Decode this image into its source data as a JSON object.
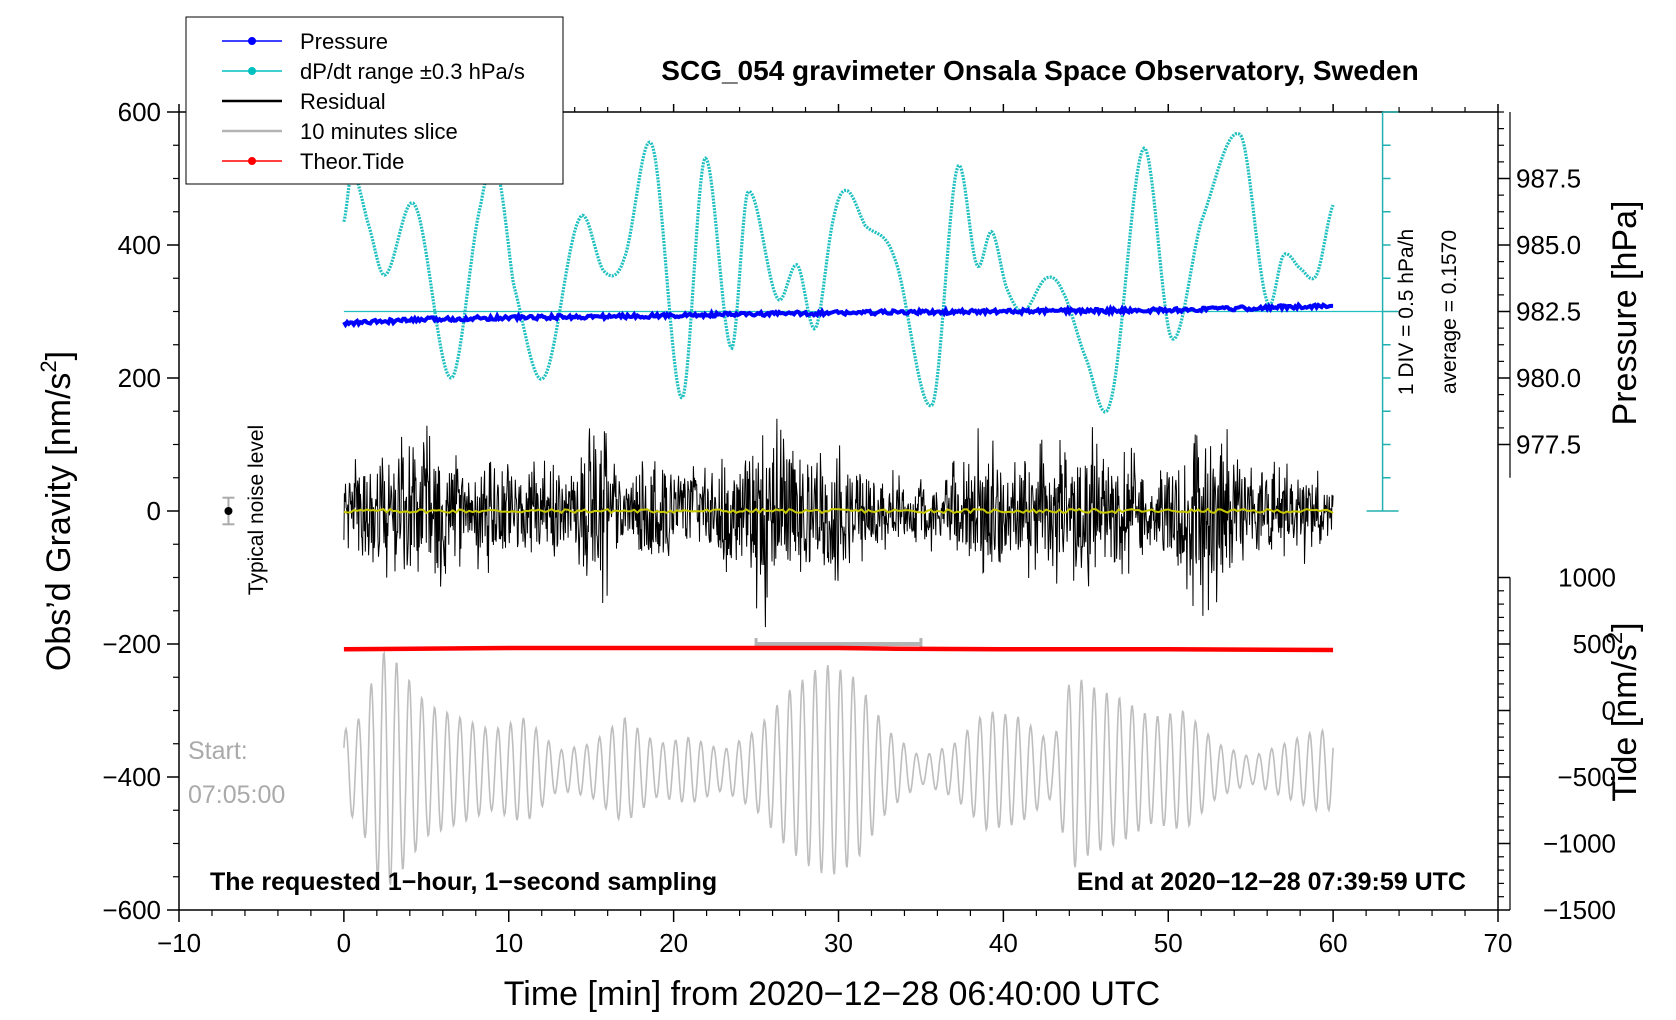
{
  "chart_data": {
    "type": "line",
    "title": "SCG_054 gravimeter Onsala Space Observatory, Sweden",
    "xlabel": "Time [min] from 2020−12−28 06:40:00 UTC",
    "ylabel": "Obs’d Gravity [nm/s",
    "ylabel_sup": "2",
    "ylabel_close": "]",
    "xlim": [
      -10,
      70
    ],
    "ylim": [
      -600,
      600
    ],
    "x_ticks": [
      -10,
      0,
      10,
      20,
      30,
      40,
      50,
      60,
      70
    ],
    "x_tick_labels": [
      "−10",
      "0",
      "10",
      "20",
      "30",
      "40",
      "50",
      "60",
      "70"
    ],
    "y_ticks": [
      -600,
      -400,
      -200,
      0,
      200,
      400,
      600
    ],
    "y_tick_labels": [
      "−600",
      "−400",
      "−200",
      "0",
      "200",
      "400",
      "600"
    ],
    "pressure_axis": {
      "label": "Pressure [hPa]",
      "ticks": [
        977.5,
        980.0,
        982.5,
        985.0,
        987.5
      ],
      "tick_labels": [
        "977.5",
        "980.0",
        "982.5",
        "985.0",
        "987.5"
      ],
      "gravity_equiv": [
        100,
        200,
        300,
        400,
        500
      ]
    },
    "tide_axis": {
      "label": "Tide [nm/s",
      "label_sup": "2",
      "label_close": "]",
      "ticks": [
        -1500,
        -1000,
        -500,
        0,
        500,
        1000
      ],
      "tick_labels": [
        "−1500",
        "−1000",
        "−500",
        "0",
        "500",
        "1000"
      ],
      "gravity_equiv": [
        -600,
        -500,
        -400,
        -300,
        -200,
        -100
      ]
    },
    "dpdt_axis": {
      "div_label": "1 DIV = 0.5 hPa/h",
      "average_label": "average = 0.1570",
      "range_gravity": [
        0,
        600
      ],
      "x": 63
    },
    "legend": [
      {
        "label": "Pressure",
        "color": "#0000ff",
        "style": "line-dot"
      },
      {
        "label": "dP/dt range ±0.3 hPa/s",
        "color": "#00c0c0",
        "style": "line-dot"
      },
      {
        "label": "Residual",
        "color": "#000000",
        "style": "line"
      },
      {
        "label": "10 minutes slice",
        "color": "#b4b4b4",
        "style": "line"
      },
      {
        "label": "Theor.Tide",
        "color": "#ff0000",
        "style": "line-dot"
      }
    ],
    "legend_position": "top-left",
    "series": [
      {
        "name": "dP/dt",
        "color": "#20c0c0",
        "x": [
          0,
          0.5,
          1.5,
          2.5,
          4.3,
          6.5,
          8.3,
          9.3,
          10.3,
          12.1,
          14.3,
          15.8,
          17,
          18.7,
          20.5,
          21.9,
          23.5,
          24.5,
          26.3,
          27.5,
          28.6,
          29.7,
          30.5,
          31.6,
          33.4,
          35.7,
          37.2,
          38.4,
          39.3,
          40.2,
          41.2,
          42.6,
          43.6,
          45,
          46.5,
          48.5,
          50.2,
          52,
          54.4,
          56,
          57,
          58,
          59,
          60
        ],
        "y": [
          435,
          510,
          430,
          355,
          460,
          200,
          460,
          510,
          340,
          200,
          440,
          360,
          380,
          550,
          170,
          530,
          245,
          480,
          320,
          370,
          275,
          440,
          482,
          430,
          380,
          160,
          515,
          370,
          420,
          335,
          300,
          350,
          330,
          230,
          165,
          545,
          260,
          435,
          565,
          315,
          385,
          365,
          355,
          460
        ]
      },
      {
        "name": "Pressure",
        "color": "#0000ff",
        "x": [
          0,
          5,
          10,
          15,
          20,
          25,
          30,
          35,
          40,
          45,
          50,
          55,
          60
        ],
        "y": [
          282,
          288,
          291,
          292,
          294,
          296,
          298,
          299,
          300,
          301,
          302,
          305,
          309
        ]
      },
      {
        "name": "Residual",
        "color": "#000000",
        "type": "noise",
        "x_range": [
          0,
          60
        ],
        "envelope_x": [
          0,
          2,
          4,
          5.8,
          7,
          9,
          12,
          14,
          15.6,
          16.5,
          19,
          21,
          23,
          24.5,
          25.4,
          26.5,
          27.8,
          29,
          29.8,
          31,
          33,
          36,
          38.5,
          40,
          42,
          45,
          48,
          50.5,
          52.2,
          53.5,
          55,
          57,
          59,
          60
        ],
        "envelope_amp": [
          70,
          110,
          140,
          150,
          100,
          100,
          80,
          100,
          220,
          90,
          110,
          80,
          110,
          120,
          200,
          150,
          120,
          120,
          140,
          110,
          70,
          70,
          130,
          90,
          120,
          140,
          110,
          100,
          190,
          150,
          90,
          90,
          80,
          60
        ],
        "seed": 4242
      },
      {
        "name": "Residual mean",
        "color": "#c8c800",
        "x": [
          0,
          60
        ],
        "y": [
          0,
          0
        ]
      },
      {
        "name": "Theor.Tide",
        "color": "#ff0000",
        "x": [
          0,
          10,
          20,
          30,
          33.5,
          40,
          50,
          60
        ],
        "y": [
          -208,
          -206,
          -206,
          -206,
          -207,
          -208,
          -208,
          -209
        ]
      },
      {
        "name": "10 minutes slice",
        "color": "#bebebe",
        "type": "oscillation",
        "x_range": [
          0,
          60
        ],
        "center": -390,
        "cycles": 78,
        "envelope_x": [
          0,
          1,
          2.3,
          3,
          5,
          7,
          9,
          11,
          13,
          15,
          17,
          19,
          21,
          23,
          25,
          27,
          28.5,
          29.5,
          31,
          33,
          35,
          37,
          39,
          41,
          43,
          44.2,
          45,
          47,
          49,
          51,
          53,
          55,
          57,
          59,
          60
        ],
        "envelope_amp": [
          60,
          80,
          180,
          170,
          100,
          80,
          60,
          80,
          30,
          40,
          80,
          40,
          50,
          30,
          60,
          120,
          150,
          160,
          140,
          60,
          20,
          40,
          90,
          80,
          40,
          150,
          130,
          110,
          80,
          90,
          40,
          20,
          40,
          60,
          60
        ]
      }
    ],
    "slice_bracket": {
      "x": [
        25,
        35
      ],
      "y": -200
    },
    "noise_marker": {
      "x": -7,
      "y": 0,
      "err": 20,
      "label": "Typical noise level"
    },
    "start_label": [
      "Start:",
      "07:05:00"
    ],
    "bottom_left_text": "The requested 1−hour, 1−second sampling",
    "bottom_right_text": "End at 2020−12−28 07:39:59 UTC"
  }
}
